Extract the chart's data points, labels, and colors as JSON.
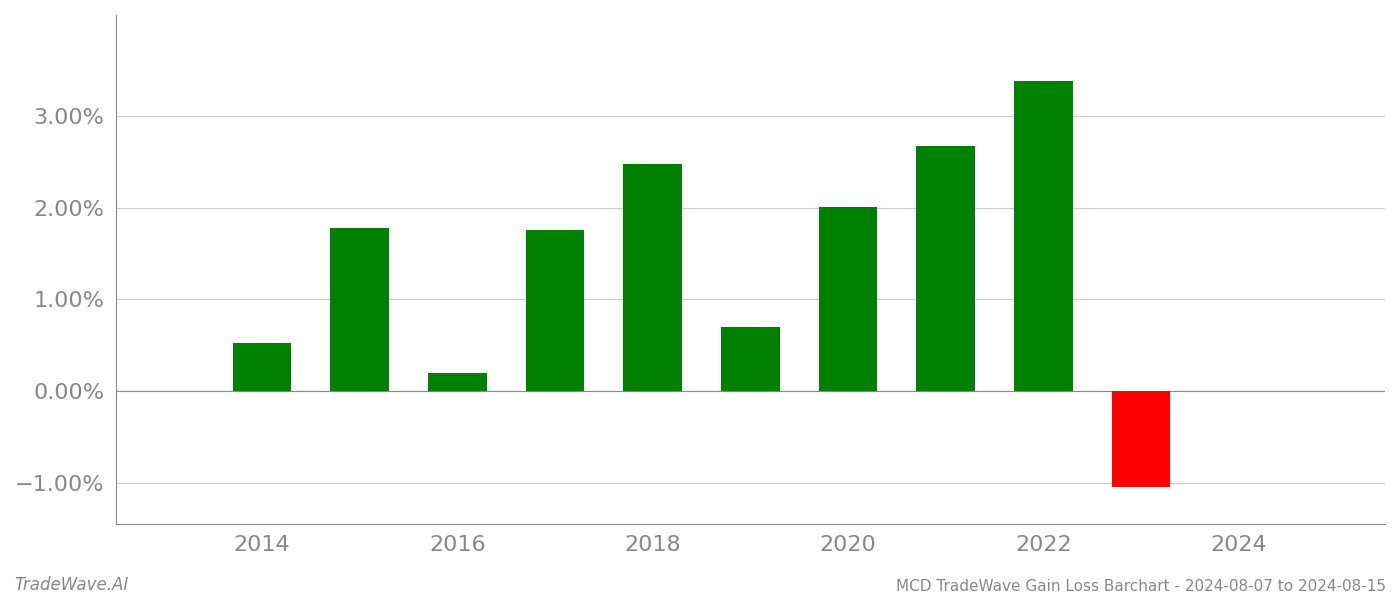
{
  "years": [
    2014,
    2015,
    2016,
    2017,
    2018,
    2019,
    2020,
    2021,
    2022,
    2023
  ],
  "values": [
    0.0052,
    0.0178,
    0.002,
    0.0175,
    0.0247,
    0.007,
    0.0201,
    0.0267,
    0.0338,
    -0.0105
  ],
  "colors": [
    "#008000",
    "#008000",
    "#008000",
    "#008000",
    "#008000",
    "#008000",
    "#008000",
    "#008000",
    "#008000",
    "#ff0000"
  ],
  "title": "MCD TradeWave Gain Loss Barchart - 2024-08-07 to 2024-08-15",
  "watermark": "TradeWave.AI",
  "ylim_min": -0.0145,
  "ylim_max": 0.041,
  "yticks": [
    -0.01,
    0.0,
    0.01,
    0.02,
    0.03
  ],
  "ytick_labels": [
    "−1.00%",
    "0.00%",
    "1.00%",
    "2.00%",
    "3.00%"
  ],
  "xtick_labels": [
    "2014",
    "2016",
    "2018",
    "2020",
    "2022",
    "2024"
  ],
  "xticks": [
    2014,
    2016,
    2018,
    2020,
    2022,
    2024
  ],
  "background_color": "#ffffff",
  "grid_color": "#cccccc",
  "bar_width": 0.6,
  "title_fontsize": 11,
  "watermark_fontsize": 12,
  "tick_fontsize": 16
}
